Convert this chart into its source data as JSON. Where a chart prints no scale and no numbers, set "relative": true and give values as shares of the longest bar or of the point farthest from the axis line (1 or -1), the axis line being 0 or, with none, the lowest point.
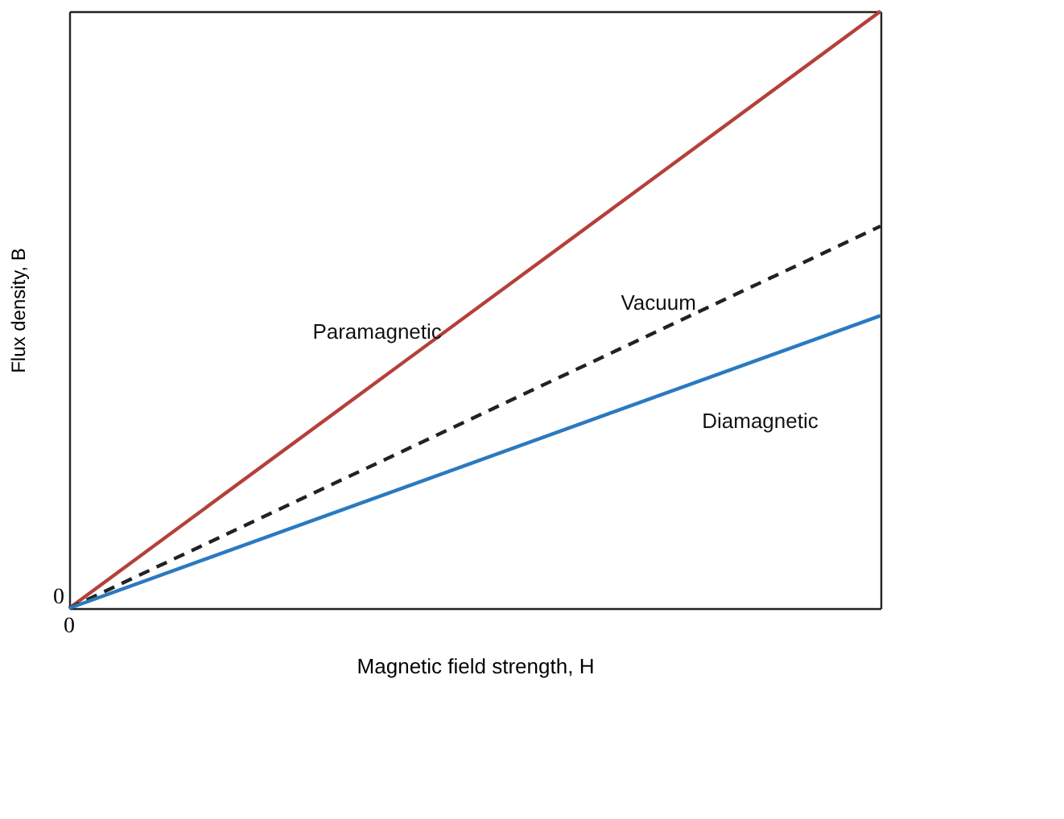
{
  "chart_data": {
    "type": "line",
    "relative": true,
    "xlabel": "Magnetic field strength, H",
    "ylabel": "Flux density, B",
    "categories": [
      null,
      null
    ],
    "line_style": "solid",
    "marker": "none",
    "annotations": [
      "0",
      "0"
    ],
    "series": [
      {
        "name": "Paramagnetic",
        "color": "#b5403a",
        "values": [
          0,
          1
        ]
      },
      {
        "name": "Vacuum",
        "color": "#222222",
        "values": [
          0,
          0.64
        ],
        "line_style": "dashed"
      },
      {
        "name": "Diamagnetic",
        "color": "#2a7abf",
        "values": [
          0,
          0.49
        ]
      }
    ]
  }
}
